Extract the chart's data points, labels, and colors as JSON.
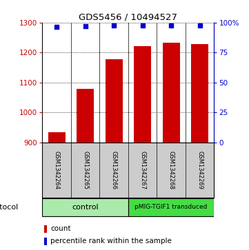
{
  "title": "GDS5456 / 10494527",
  "samples": [
    "GSM1342264",
    "GSM1342265",
    "GSM1342266",
    "GSM1342267",
    "GSM1342268",
    "GSM1342269"
  ],
  "counts": [
    935,
    1078,
    1177,
    1222,
    1232,
    1227
  ],
  "percentiles": [
    96.5,
    97.2,
    97.5,
    97.8,
    97.8,
    97.8
  ],
  "ylim_left": [
    900,
    1300
  ],
  "ylim_right": [
    0,
    100
  ],
  "yticks_left": [
    900,
    1000,
    1100,
    1200,
    1300
  ],
  "yticks_right": [
    0,
    25,
    50,
    75,
    100
  ],
  "ytick_labels_right": [
    "0",
    "25",
    "50",
    "75",
    "100%"
  ],
  "bar_color": "#cc0000",
  "scatter_color": "#0000cc",
  "bg_color": "#ffffff",
  "sample_box_color": "#cccccc",
  "control_color": "#aaeaaa",
  "transduced_color": "#44dd44",
  "control_label": "control",
  "transduced_label": "pMIG-TGIF1 transduced",
  "protocol_label": "protocol",
  "legend_bar_label": "count",
  "legend_scatter_label": "percentile rank within the sample",
  "bar_width": 0.6
}
